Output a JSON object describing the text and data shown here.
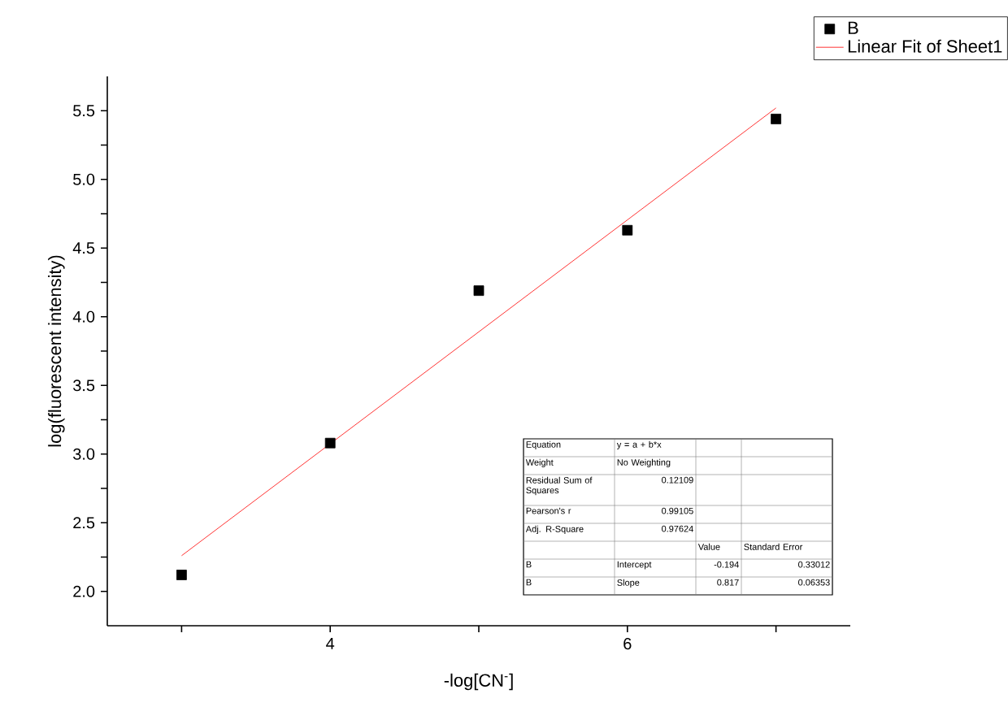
{
  "chart_data": {
    "type": "scatter",
    "xlabel": "-log[CN$^{-}$]",
    "ylabel": "log(fluorescent intensity)",
    "x": [
      3,
      4,
      5,
      6,
      7
    ],
    "series": [
      {
        "name": "B",
        "marker": "square",
        "color": "#000000",
        "values": [
          2.12,
          3.08,
          4.19,
          4.63,
          5.44
        ]
      },
      {
        "name": "Linear Fit of Sheet1",
        "type": "line",
        "marker": "none",
        "line_style": "solid",
        "color": "#ff0000",
        "x": [
          3,
          7
        ],
        "values": [
          2.26,
          5.52
        ]
      }
    ],
    "xlim": [
      2.5,
      7.5
    ],
    "xticks": [
      {
        "value": 3,
        "label": null
      },
      4,
      {
        "value": 5,
        "label": null
      },
      6,
      {
        "value": 7,
        "label": null
      }
    ],
    "ylim": [
      1.75,
      5.75
    ],
    "yticks": [
      {
        "value": 2,
        "label": "2.0"
      },
      {
        "value": 2.25,
        "label": null
      },
      2.5,
      {
        "value": 2.75,
        "label": null
      },
      {
        "value": 3,
        "label": "3.0"
      },
      {
        "value": 3.25,
        "label": null
      },
      3.5,
      {
        "value": 3.75,
        "label": null
      },
      {
        "value": 4,
        "label": "4.0"
      },
      {
        "value": 4.25,
        "label": null
      },
      4.5,
      {
        "value": 4.75,
        "label": null
      },
      {
        "value": 5,
        "label": "5.0"
      },
      {
        "value": 5.25,
        "label": null
      },
      5.5
    ],
    "legend": "top right",
    "annotations": [
      "Equation",
      "y = a + b*x",
      "Weight",
      "No Weighting",
      "Residual Sum of Squares",
      "0.12109",
      "Pearson's r",
      "0.99105",
      "Adj. R-Square",
      "0.97624",
      "Value",
      "Standard Error",
      "B",
      "Intercept",
      "-0.194",
      "0.33012",
      "B",
      "Slope",
      "0.817",
      "0.06353"
    ]
  }
}
